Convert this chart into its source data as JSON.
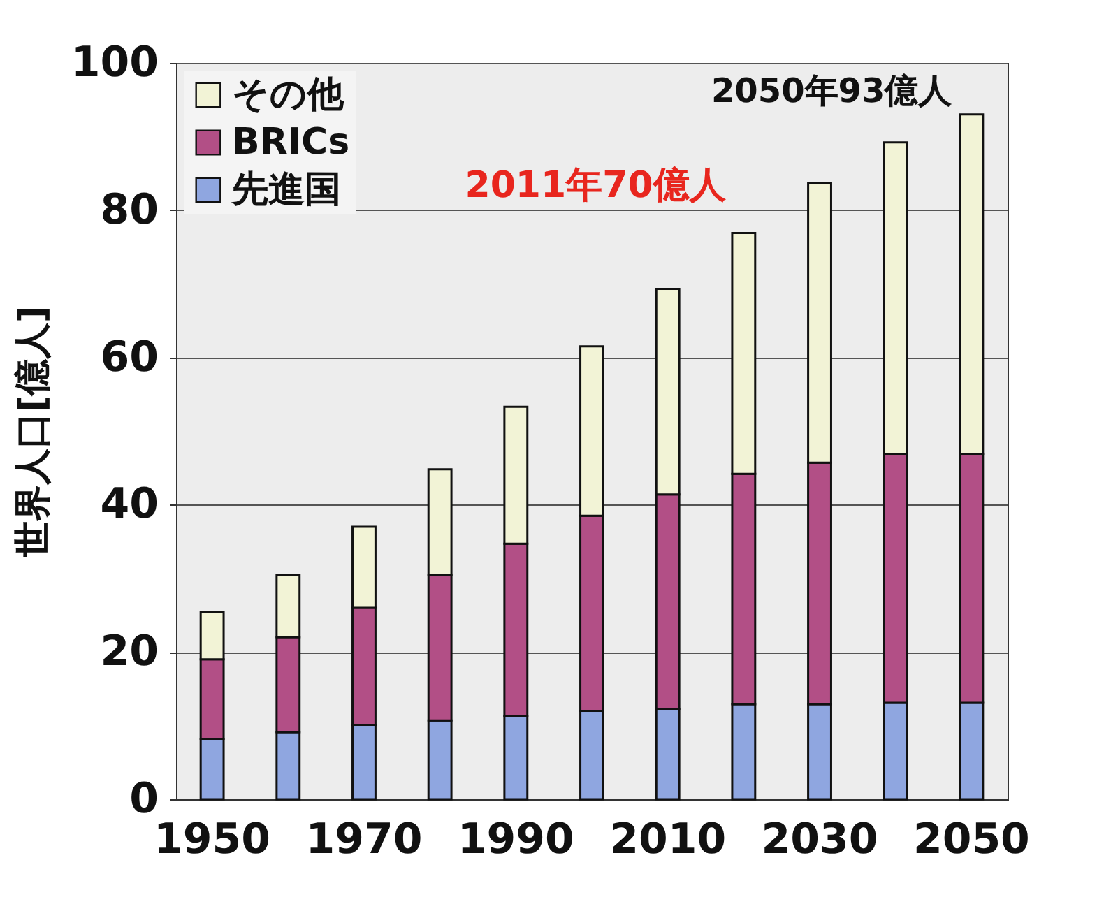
{
  "chart_data": {
    "type": "bar",
    "stacked": true,
    "ylabel": "世界人口[億人]",
    "categories": [
      "1950",
      null,
      "1970",
      null,
      "1990",
      null,
      "2010",
      null,
      "2030",
      null,
      "2050"
    ],
    "series": [
      {
        "name": "先進国",
        "color": "#8fa6e0",
        "values": [
          8.2,
          9.1,
          10.1,
          10.7,
          11.3,
          12.0,
          12.2,
          12.9,
          12.9,
          13.1,
          13.1
        ]
      },
      {
        "name": "BRICs",
        "color": "#b24f86",
        "values": [
          10.8,
          12.9,
          15.9,
          19.7,
          23.4,
          26.5,
          29.2,
          31.3,
          32.8,
          33.8,
          33.8
        ]
      },
      {
        "name": "その他",
        "color": "#f2f3d6",
        "values": [
          6.4,
          8.4,
          11.0,
          14.4,
          18.6,
          23.0,
          27.9,
          32.7,
          38.0,
          42.3,
          46.1
        ]
      }
    ],
    "ylim": [
      0,
      100
    ],
    "yticks": [
      0,
      20,
      40,
      60,
      80,
      100
    ],
    "grid": "y",
    "legend": "top left",
    "annotations": [
      {
        "text": "2050年93億人",
        "x": "2050",
        "y": 93
      },
      "2011年70億人"
    ]
  }
}
